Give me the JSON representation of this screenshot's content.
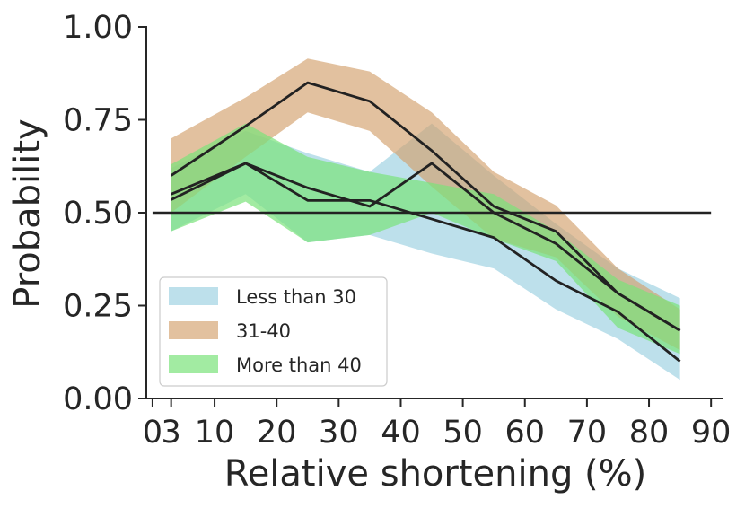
{
  "chart_data": {
    "type": "area",
    "title": "",
    "xlabel": "Relative shortening (%)",
    "ylabel": "Probability",
    "xlim": [
      -1,
      92
    ],
    "ylim": [
      0,
      1
    ],
    "x_ticks": [
      {
        "value": 0,
        "label": "0"
      },
      {
        "value": 3,
        "label": "3"
      },
      {
        "value": 10,
        "label": "10"
      },
      {
        "value": 20,
        "label": "20"
      },
      {
        "value": 30,
        "label": "30"
      },
      {
        "value": 40,
        "label": "40"
      },
      {
        "value": 50,
        "label": "50"
      },
      {
        "value": 60,
        "label": "60"
      },
      {
        "value": 70,
        "label": "70"
      },
      {
        "value": 80,
        "label": "80"
      },
      {
        "value": 90,
        "label": "90"
      }
    ],
    "y_ticks": [
      {
        "value": 0,
        "label": "0.00"
      },
      {
        "value": 0.25,
        "label": "0.25"
      },
      {
        "value": 0.5,
        "label": "0.50"
      },
      {
        "value": 0.75,
        "label": "0.75"
      },
      {
        "value": 1.0,
        "label": "1.00"
      }
    ],
    "reference_line": {
      "y": 0.5,
      "x_start": 0,
      "x_end": 90,
      "color": "#222222"
    },
    "legend": {
      "position": "lower-left"
    },
    "series": [
      {
        "name": "Less than 30",
        "color": "#add8e6",
        "opacity": 0.8,
        "x": [
          3,
          15,
          25,
          35,
          45,
          55,
          65,
          75,
          85
        ],
        "mean": [
          0.535,
          0.633,
          0.533,
          0.533,
          0.483,
          0.433,
          0.317,
          0.233,
          0.1
        ],
        "upper": [
          0.62,
          0.72,
          0.66,
          0.61,
          0.74,
          0.6,
          0.47,
          0.35,
          0.27
        ],
        "lower": [
          0.45,
          0.55,
          0.42,
          0.44,
          0.39,
          0.35,
          0.24,
          0.16,
          0.05
        ]
      },
      {
        "name": "31-40",
        "color": "#d2a06b",
        "opacity": 0.65,
        "x": [
          3,
          15,
          25,
          35,
          45,
          55,
          65,
          75,
          85
        ],
        "mean": [
          0.6,
          0.733,
          0.85,
          0.8,
          0.667,
          0.517,
          0.45,
          0.283,
          0.183
        ],
        "upper": [
          0.7,
          0.81,
          0.915,
          0.88,
          0.77,
          0.61,
          0.52,
          0.35,
          0.24
        ],
        "lower": [
          0.5,
          0.65,
          0.77,
          0.72,
          0.57,
          0.43,
          0.38,
          0.22,
          0.13
        ]
      },
      {
        "name": "More than 40",
        "color": "#7be37b",
        "opacity": 0.7,
        "x": [
          3,
          15,
          25,
          35,
          45,
          55,
          65,
          75,
          85
        ],
        "mean": [
          0.55,
          0.633,
          0.567,
          0.517,
          0.633,
          0.5,
          0.417,
          0.283,
          0.183
        ],
        "upper": [
          0.63,
          0.74,
          0.65,
          0.61,
          0.58,
          0.55,
          0.45,
          0.32,
          0.25
        ],
        "lower": [
          0.45,
          0.53,
          0.42,
          0.44,
          0.5,
          0.43,
          0.37,
          0.19,
          0.12
        ]
      }
    ]
  }
}
